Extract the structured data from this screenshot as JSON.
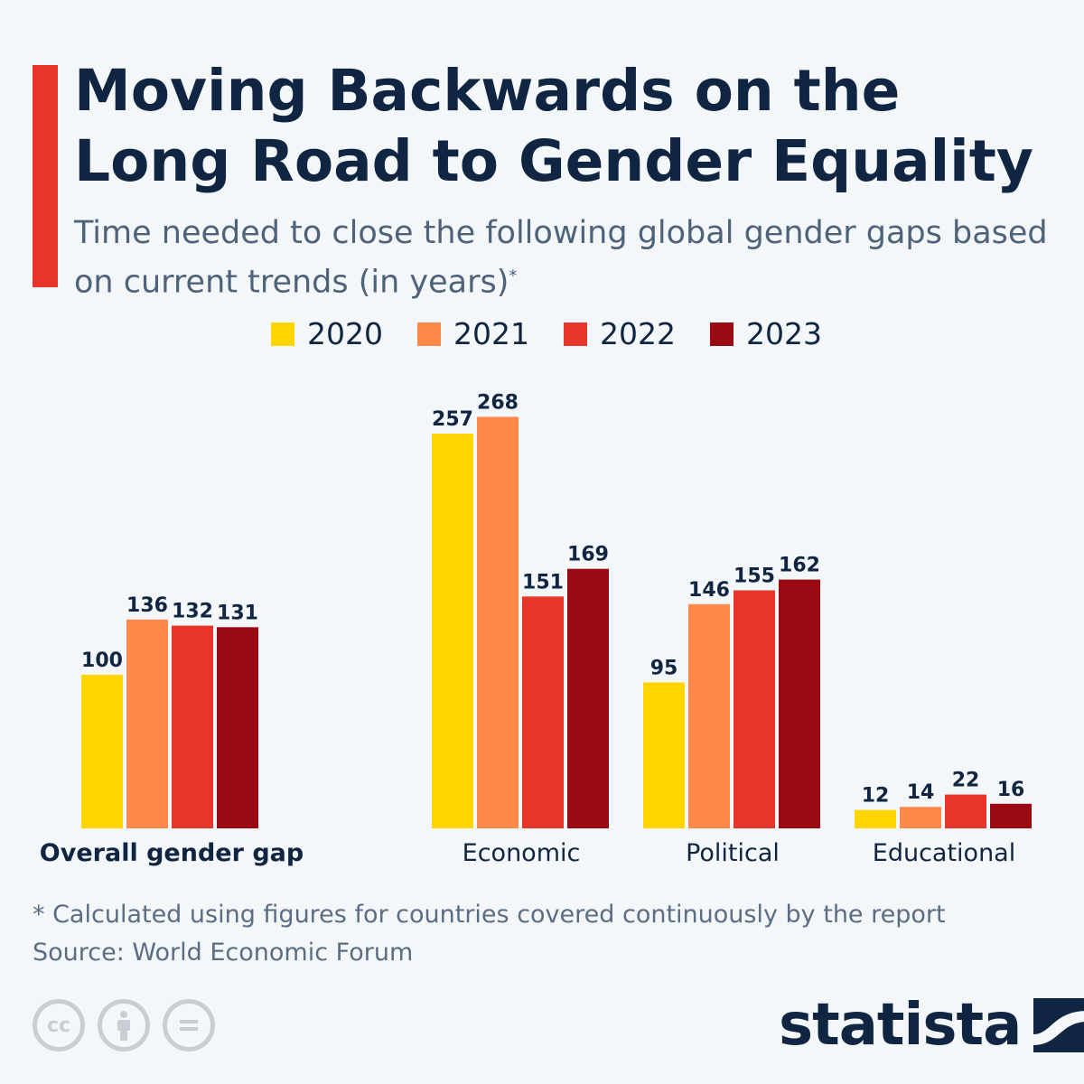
{
  "header": {
    "title": "Moving Backwards on the Long Road to Gender Equality",
    "subtitle": "Time needed to close the following global gender gaps based on current trends (in years)",
    "subtitle_mark": "*",
    "accent_color": "#e8352a"
  },
  "chart_data": {
    "type": "bar",
    "title": "Moving Backwards on the Long Road to Gender Equality",
    "subtitle": "Time needed to close the following global gender gaps based on current trends (in years)",
    "categories": [
      "Overall gender gap",
      "Economic",
      "Political",
      "Educational"
    ],
    "series": [
      {
        "name": "2020",
        "color": "#ffd500",
        "values": [
          100,
          257,
          95,
          12
        ]
      },
      {
        "name": "2021",
        "color": "#ff884a",
        "values": [
          136,
          268,
          146,
          14
        ]
      },
      {
        "name": "2022",
        "color": "#e8352a",
        "values": [
          132,
          151,
          155,
          22
        ]
      },
      {
        "name": "2023",
        "color": "#9b0a12",
        "values": [
          131,
          169,
          162,
          16
        ]
      }
    ],
    "legend_position": "top",
    "grid": false,
    "ylim": [
      0,
      268
    ],
    "data_labels": true
  },
  "footer": {
    "note": "* Calculated using figures for countries covered continuously by the report",
    "source": "Source: World Economic Forum",
    "license_icons": [
      "cc-icon",
      "by-icon",
      "nd-icon"
    ],
    "brand": "statista"
  }
}
